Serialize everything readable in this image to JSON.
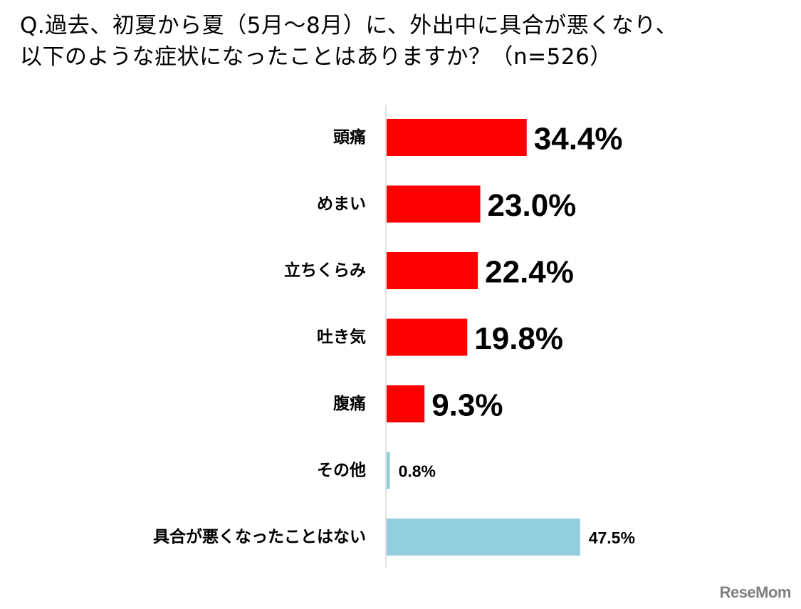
{
  "title_line1": "Q.過去、初夏から夏（5月～8月）に、外出中に具合が悪くなり、",
  "title_line2": "以下のような症状になったことはありますか？（n=526）",
  "logo": "ReseMom",
  "chart_data": {
    "type": "bar",
    "orientation": "horizontal",
    "categories": [
      "頭痛",
      "めまい",
      "立ちくらみ",
      "吐き気",
      "腹痛",
      "その他",
      "具合が悪くなったことはない"
    ],
    "values": [
      34.4,
      23.0,
      22.4,
      19.8,
      9.3,
      0.8,
      47.5
    ],
    "value_labels": [
      "34.4%",
      "23.0%",
      "22.4%",
      "19.8%",
      "9.3%",
      "0.8%",
      "47.5%"
    ],
    "colors": [
      "#ff0000",
      "#ff0000",
      "#ff0000",
      "#ff0000",
      "#ff0000",
      "#92cddc",
      "#92cddc"
    ],
    "label_emphasis": [
      "large",
      "large",
      "large",
      "large",
      "large",
      "small",
      "small"
    ],
    "xlim": [
      0,
      100
    ],
    "grid": false,
    "legend": "none",
    "unit": "%"
  }
}
